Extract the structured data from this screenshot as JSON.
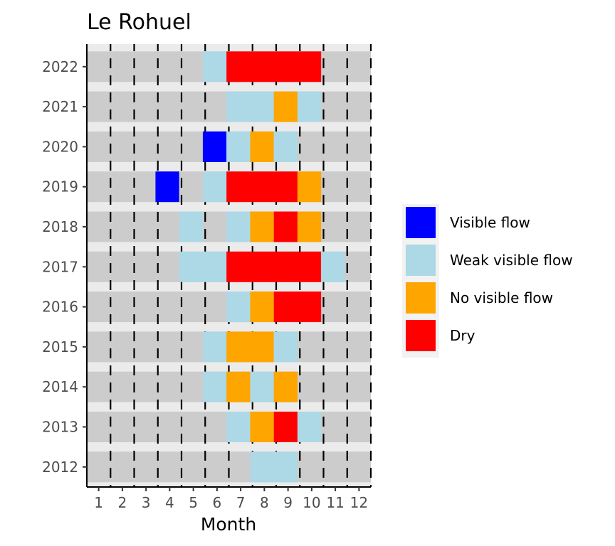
{
  "chart_data": {
    "type": "heatmap",
    "title": "Le Rohuel",
    "xlabel": "Month",
    "ylabel": "",
    "x": [
      "1",
      "2",
      "3",
      "4",
      "5",
      "6",
      "7",
      "8",
      "9",
      "10",
      "11",
      "12"
    ],
    "y": [
      "2012",
      "2013",
      "2014",
      "2015",
      "2016",
      "2017",
      "2018",
      "2019",
      "2020",
      "2021",
      "2022"
    ],
    "xlim": [
      0.5,
      12.5
    ],
    "legend_position": "right",
    "categories": [
      "Visible flow",
      "Weak visible flow",
      "No visible flow",
      "Dry"
    ],
    "colors": {
      "Visible flow": "#0000ff",
      "Weak visible flow": "#add8e6",
      "No visible flow": "#ffa500",
      "Dry": "#ff0000",
      "no_data": "#cccccc",
      "gap": "#ebebeb"
    },
    "observations": [
      {
        "year": "2012",
        "start": 7.4,
        "end": 9.4,
        "category": "Weak visible flow"
      },
      {
        "year": "2013",
        "start": 6.4,
        "end": 7.4,
        "category": "Weak visible flow"
      },
      {
        "year": "2013",
        "start": 7.4,
        "end": 8.4,
        "category": "No visible flow"
      },
      {
        "year": "2013",
        "start": 8.4,
        "end": 9.4,
        "category": "Dry"
      },
      {
        "year": "2013",
        "start": 9.4,
        "end": 10.4,
        "category": "Weak visible flow"
      },
      {
        "year": "2014",
        "start": 5.4,
        "end": 6.4,
        "category": "Weak visible flow"
      },
      {
        "year": "2014",
        "start": 6.4,
        "end": 7.4,
        "category": "No visible flow"
      },
      {
        "year": "2014",
        "start": 7.4,
        "end": 8.4,
        "category": "Weak visible flow"
      },
      {
        "year": "2014",
        "start": 8.4,
        "end": 9.4,
        "category": "No visible flow"
      },
      {
        "year": "2015",
        "start": 5.4,
        "end": 6.4,
        "category": "Weak visible flow"
      },
      {
        "year": "2015",
        "start": 6.4,
        "end": 8.4,
        "category": "No visible flow"
      },
      {
        "year": "2015",
        "start": 8.4,
        "end": 9.4,
        "category": "Weak visible flow"
      },
      {
        "year": "2016",
        "start": 6.4,
        "end": 7.4,
        "category": "Weak visible flow"
      },
      {
        "year": "2016",
        "start": 7.4,
        "end": 8.4,
        "category": "No visible flow"
      },
      {
        "year": "2016",
        "start": 8.4,
        "end": 10.4,
        "category": "Dry"
      },
      {
        "year": "2017",
        "start": 4.4,
        "end": 6.4,
        "category": "Weak visible flow"
      },
      {
        "year": "2017",
        "start": 6.4,
        "end": 10.4,
        "category": "Dry"
      },
      {
        "year": "2017",
        "start": 10.4,
        "end": 11.4,
        "category": "Weak visible flow"
      },
      {
        "year": "2018",
        "start": 4.4,
        "end": 5.4,
        "category": "Weak visible flow"
      },
      {
        "year": "2018",
        "start": 6.4,
        "end": 7.4,
        "category": "Weak visible flow"
      },
      {
        "year": "2018",
        "start": 7.4,
        "end": 8.4,
        "category": "No visible flow"
      },
      {
        "year": "2018",
        "start": 8.4,
        "end": 9.4,
        "category": "Dry"
      },
      {
        "year": "2018",
        "start": 9.4,
        "end": 10.4,
        "category": "No visible flow"
      },
      {
        "year": "2019",
        "start": 3.4,
        "end": 4.4,
        "category": "Visible flow"
      },
      {
        "year": "2019",
        "start": 5.4,
        "end": 6.4,
        "category": "Weak visible flow"
      },
      {
        "year": "2019",
        "start": 6.4,
        "end": 9.4,
        "category": "Dry"
      },
      {
        "year": "2019",
        "start": 9.4,
        "end": 10.4,
        "category": "No visible flow"
      },
      {
        "year": "2020",
        "start": 5.4,
        "end": 6.4,
        "category": "Visible flow"
      },
      {
        "year": "2020",
        "start": 6.4,
        "end": 7.4,
        "category": "Weak visible flow"
      },
      {
        "year": "2020",
        "start": 7.4,
        "end": 8.4,
        "category": "No visible flow"
      },
      {
        "year": "2020",
        "start": 8.4,
        "end": 9.4,
        "category": "Weak visible flow"
      },
      {
        "year": "2021",
        "start": 6.4,
        "end": 8.4,
        "category": "Weak visible flow"
      },
      {
        "year": "2021",
        "start": 8.4,
        "end": 9.4,
        "category": "No visible flow"
      },
      {
        "year": "2021",
        "start": 9.4,
        "end": 10.4,
        "category": "Weak visible flow"
      },
      {
        "year": "2022",
        "start": 5.4,
        "end": 6.4,
        "category": "Weak visible flow"
      },
      {
        "year": "2022",
        "start": 6.4,
        "end": 10.4,
        "category": "Dry"
      }
    ]
  }
}
